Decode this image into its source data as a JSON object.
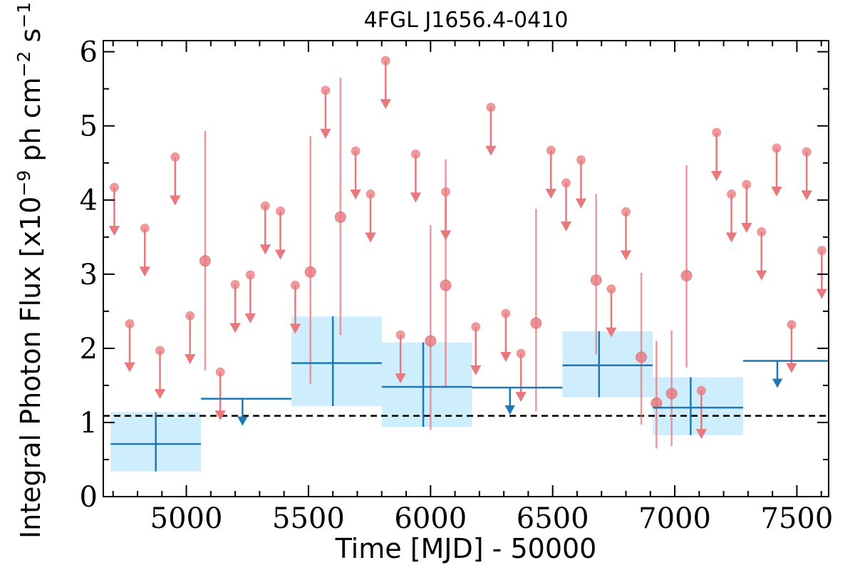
{
  "chart_data": {
    "type": "scatter",
    "title": "4FGL J1656.4-0410",
    "xlabel": "Time [MJD] - 50000",
    "ylabel": "Integral Photon Flux [x10",
    "ylabel_exp1": "−9",
    "ylabel_mid": " ph cm",
    "ylabel_exp2": "−2",
    "ylabel_mid2": " s",
    "ylabel_exp3": "−1",
    "ylabel_end": "]",
    "xlim": [
      4660,
      7630
    ],
    "ylim": [
      0,
      6.15
    ],
    "x_ticks": [
      5000,
      5500,
      6000,
      6500,
      7000,
      7500
    ],
    "y_ticks": [
      0,
      1,
      2,
      3,
      4,
      5,
      6
    ],
    "x_tick_labels": [
      "5000",
      "5500",
      "6000",
      "6500",
      "7000",
      "7500"
    ],
    "y_tick_labels": [
      "0",
      "1",
      "2",
      "3",
      "4",
      "5",
      "6"
    ],
    "reference_line": {
      "y": 1.09,
      "style": "dashed",
      "color": "#000000"
    },
    "colors": {
      "short_bins": "#e8787c",
      "long_bins": "#1f77b4",
      "long_band": "#cfeefd"
    },
    "short_bins": {
      "upper_limits": [
        [
          4705,
          4.17
        ],
        [
          4768,
          2.33
        ],
        [
          4830,
          3.62
        ],
        [
          4892,
          1.97
        ],
        [
          4954,
          4.58
        ],
        [
          5015,
          2.44
        ],
        [
          5139,
          1.68
        ],
        [
          5200,
          2.86
        ],
        [
          5262,
          2.99
        ],
        [
          5323,
          3.92
        ],
        [
          5385,
          3.85
        ],
        [
          5446,
          2.85
        ],
        [
          5570,
          5.48
        ],
        [
          5693,
          4.66
        ],
        [
          5754,
          4.08
        ],
        [
          5816,
          5.88
        ],
        [
          5877,
          2.18
        ],
        [
          5939,
          4.62
        ],
        [
          6062,
          4.11
        ],
        [
          6185,
          2.29
        ],
        [
          6247,
          5.25
        ],
        [
          6308,
          2.47
        ],
        [
          6370,
          1.93
        ],
        [
          6493,
          4.67
        ],
        [
          6555,
          4.23
        ],
        [
          6616,
          4.54
        ],
        [
          6740,
          2.8
        ],
        [
          6800,
          3.84
        ],
        [
          7109,
          1.43
        ],
        [
          7171,
          4.91
        ],
        [
          7232,
          4.08
        ],
        [
          7294,
          4.21
        ],
        [
          7355,
          3.57
        ],
        [
          7417,
          4.7
        ],
        [
          7478,
          2.32
        ],
        [
          7540,
          4.65
        ],
        [
          7602,
          3.32
        ]
      ],
      "detections": [
        {
          "x": 5077,
          "y": 3.18,
          "ylo": 1.7,
          "yhi": 4.93
        },
        {
          "x": 5508,
          "y": 3.03,
          "ylo": 1.52,
          "yhi": 4.86
        },
        {
          "x": 5631,
          "y": 3.77,
          "ylo": 2.18,
          "yhi": 5.65
        },
        {
          "x": 6000,
          "y": 2.1,
          "ylo": 0.9,
          "yhi": 3.66
        },
        {
          "x": 6062,
          "y": 2.85,
          "ylo": 1.47,
          "yhi": 4.55
        },
        {
          "x": 6432,
          "y": 2.34,
          "ylo": 1.15,
          "yhi": 3.88
        },
        {
          "x": 6678,
          "y": 2.92,
          "ylo": 1.92,
          "yhi": 4.08
        },
        {
          "x": 6863,
          "y": 1.88,
          "ylo": 0.97,
          "yhi": 3.02
        },
        {
          "x": 6925,
          "y": 1.26,
          "ylo": 0.65,
          "yhi": 2.1
        },
        {
          "x": 6987,
          "y": 1.39,
          "ylo": 0.68,
          "yhi": 2.24
        },
        {
          "x": 7048,
          "y": 2.98,
          "ylo": 1.74,
          "yhi": 4.47
        }
      ]
    },
    "long_bins": {
      "detections": [
        {
          "x": 4875,
          "x0": 4690,
          "x1": 5060,
          "y": 0.71,
          "ylo": 0.34,
          "yhi": 1.14
        },
        {
          "x": 5600,
          "x0": 5430,
          "x1": 5800,
          "y": 1.8,
          "ylo": 1.22,
          "yhi": 2.43
        },
        {
          "x": 5970,
          "x0": 5800,
          "x1": 6170,
          "y": 1.48,
          "ylo": 0.94,
          "yhi": 2.08
        },
        {
          "x": 6690,
          "x0": 6540,
          "x1": 6910,
          "y": 1.77,
          "ylo": 1.34,
          "yhi": 2.23
        },
        {
          "x": 7065,
          "x0": 6910,
          "x1": 7280,
          "y": 1.2,
          "ylo": 0.83,
          "yhi": 1.61
        }
      ],
      "upper_limits": [
        {
          "x": 5230,
          "x0": 5060,
          "x1": 5430,
          "y": 1.32
        },
        {
          "x": 6325,
          "x0": 6170,
          "x1": 6540,
          "y": 1.47
        },
        {
          "x": 7420,
          "x0": 7280,
          "x1": 7650,
          "y": 1.83
        }
      ]
    }
  }
}
